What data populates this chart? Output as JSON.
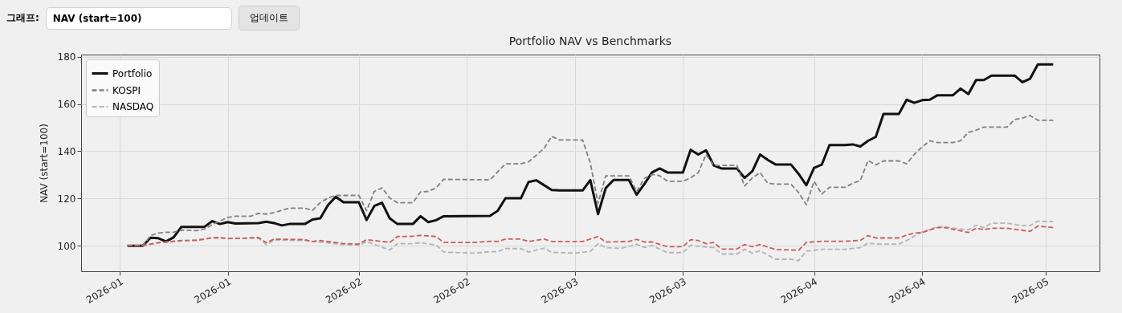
{
  "chart_data": {
    "type": "line",
    "title": "Portfolio NAV vs Benchmarks",
    "ylabel": "NAV (start=100)",
    "annotations": [
      "그래프:",
      "NAV (start=100)",
      "업데이트"
    ],
    "xlim": [
      "2025-12-27",
      "2026-05-08"
    ],
    "xticks": [
      {
        "value": "2026-01-01",
        "label": "2026-01"
      },
      {
        "value": "2026-01-15",
        "label": "2026-01"
      },
      {
        "value": "2026-02-01",
        "label": "2026-02"
      },
      {
        "value": "2026-02-15",
        "label": "2026-02"
      },
      {
        "value": "2026-03-01",
        "label": "2026-03"
      },
      {
        "value": "2026-03-15",
        "label": "2026-03"
      },
      {
        "value": "2026-04-01",
        "label": "2026-04"
      },
      {
        "value": "2026-04-15",
        "label": "2026-04"
      },
      {
        "value": "2026-05-01",
        "label": "2026-05"
      }
    ],
    "ylim": [
      89.2,
      180.9
    ],
    "yticks": [
      100,
      120,
      140,
      160,
      180
    ],
    "grid": true,
    "legend": "top left",
    "marker": "none",
    "series": [
      {
        "name": "Portfolio",
        "color": "#111111",
        "line_style": "solid",
        "x": [
          "2026-01-02",
          "2026-01-04",
          "2026-01-05",
          "2026-01-06",
          "2026-01-07",
          "2026-01-08",
          "2026-01-09",
          "2026-01-12",
          "2026-01-13",
          "2026-01-14",
          "2026-01-15",
          "2026-01-16",
          "2026-01-19",
          "2026-01-20",
          "2026-01-21",
          "2026-01-22",
          "2026-01-23",
          "2026-01-25",
          "2026-01-26",
          "2026-01-27",
          "2026-01-28",
          "2026-01-29",
          "2026-01-30",
          "2026-02-01",
          "2026-02-02",
          "2026-02-03",
          "2026-02-04",
          "2026-02-05",
          "2026-02-06",
          "2026-02-08",
          "2026-02-09",
          "2026-02-10",
          "2026-02-11",
          "2026-02-12",
          "2026-02-18",
          "2026-02-19",
          "2026-02-20",
          "2026-02-22",
          "2026-02-23",
          "2026-02-24",
          "2026-02-26",
          "2026-02-27",
          "2026-03-02",
          "2026-03-03",
          "2026-03-04",
          "2026-03-05",
          "2026-03-06",
          "2026-03-08",
          "2026-03-09",
          "2026-03-10",
          "2026-03-11",
          "2026-03-12",
          "2026-03-13",
          "2026-03-15",
          "2026-03-16",
          "2026-03-17",
          "2026-03-18",
          "2026-03-19",
          "2026-03-20",
          "2026-03-22",
          "2026-03-23",
          "2026-03-24",
          "2026-03-25",
          "2026-03-26",
          "2026-03-27",
          "2026-03-29",
          "2026-03-30",
          "2026-03-31",
          "2026-04-01",
          "2026-04-02",
          "2026-04-03",
          "2026-04-05",
          "2026-04-06",
          "2026-04-07",
          "2026-04-08",
          "2026-04-09",
          "2026-04-10",
          "2026-04-12",
          "2026-04-13",
          "2026-04-14",
          "2026-04-15",
          "2026-04-16",
          "2026-04-17",
          "2026-04-19",
          "2026-04-20",
          "2026-04-21",
          "2026-04-22",
          "2026-04-23",
          "2026-04-24",
          "2026-04-27",
          "2026-04-28",
          "2026-04-29",
          "2026-04-30",
          "2026-05-02"
        ],
        "values": [
          100,
          100,
          103.4,
          103.2,
          101.8,
          103.6,
          108,
          108,
          110.4,
          109.2,
          110,
          109.4,
          109.6,
          110.2,
          109.6,
          108.6,
          109.2,
          109.2,
          111.1,
          111.6,
          117.2,
          120.7,
          118.4,
          118.4,
          110.9,
          116.8,
          118.2,
          111.6,
          109.2,
          109.2,
          112.5,
          110,
          110.8,
          112.5,
          112.6,
          114.8,
          120.1,
          120.1,
          127,
          127.7,
          123.6,
          123.4,
          123.4,
          127.8,
          113.4,
          124.4,
          127.8,
          127.8,
          121.6,
          126.1,
          131,
          132.7,
          131,
          131,
          140.6,
          138.6,
          140.4,
          134,
          132.7,
          132.7,
          128.7,
          131.5,
          138.6,
          136.3,
          134.4,
          134.4,
          130.4,
          125.6,
          133,
          134.3,
          142.6,
          142.6,
          142.9,
          142,
          144.4,
          146.1,
          155.8,
          155.8,
          161.8,
          160.5,
          161.6,
          161.8,
          163.7,
          163.7,
          166.5,
          164.2,
          170.1,
          170.1,
          172,
          172,
          169.2,
          170.7,
          176.7,
          176.7
        ]
      },
      {
        "name": "KOSPI",
        "color": "#808080",
        "line_style": "dashed",
        "x": [
          "2026-01-02",
          "2026-01-04",
          "2026-01-05",
          "2026-01-06",
          "2026-01-07",
          "2026-01-08",
          "2026-01-09",
          "2026-01-11",
          "2026-01-12",
          "2026-01-13",
          "2026-01-15",
          "2026-01-16",
          "2026-01-18",
          "2026-01-19",
          "2026-01-20",
          "2026-01-21",
          "2026-01-22",
          "2026-01-23",
          "2026-01-25",
          "2026-01-26",
          "2026-01-27",
          "2026-01-28",
          "2026-01-29",
          "2026-02-01",
          "2026-02-02",
          "2026-02-03",
          "2026-02-04",
          "2026-02-05",
          "2026-02-06",
          "2026-02-08",
          "2026-02-09",
          "2026-02-10",
          "2026-02-11",
          "2026-02-12",
          "2026-02-18",
          "2026-02-20",
          "2026-02-22",
          "2026-02-23",
          "2026-02-25",
          "2026-02-26",
          "2026-02-27",
          "2026-03-02",
          "2026-03-03",
          "2026-03-04",
          "2026-03-05",
          "2026-03-08",
          "2026-03-09",
          "2026-03-10",
          "2026-03-11",
          "2026-03-12",
          "2026-03-13",
          "2026-03-15",
          "2026-03-16",
          "2026-03-17",
          "2026-03-18",
          "2026-03-19",
          "2026-03-22",
          "2026-03-23",
          "2026-03-24",
          "2026-03-25",
          "2026-03-26",
          "2026-03-27",
          "2026-03-29",
          "2026-03-30",
          "2026-03-31",
          "2026-04-01",
          "2026-04-02",
          "2026-04-03",
          "2026-04-05",
          "2026-04-06",
          "2026-04-07",
          "2026-04-08",
          "2026-04-09",
          "2026-04-10",
          "2026-04-12",
          "2026-04-13",
          "2026-04-14",
          "2026-04-15",
          "2026-04-16",
          "2026-04-17",
          "2026-04-19",
          "2026-04-20",
          "2026-04-21",
          "2026-04-22",
          "2026-04-23",
          "2026-04-26",
          "2026-04-27",
          "2026-04-28",
          "2026-04-29",
          "2026-04-30",
          "2026-05-02"
        ],
        "values": [
          100,
          100,
          104.3,
          105.4,
          105.7,
          105.7,
          106.6,
          106.4,
          107.1,
          108.9,
          112,
          112.5,
          112.5,
          113.7,
          113.4,
          114,
          115,
          115.9,
          115.9,
          115,
          118.3,
          120.2,
          121.3,
          121.3,
          114.8,
          123,
          124.5,
          120.2,
          118.2,
          118.2,
          122.8,
          123,
          124.5,
          128.1,
          127.9,
          134.7,
          134.7,
          135.5,
          141.2,
          146.3,
          144.8,
          144.8,
          135,
          117.9,
          129.6,
          129.6,
          123,
          128.5,
          130.2,
          129.6,
          127.3,
          127.3,
          128.7,
          131,
          138.6,
          134,
          134,
          125.3,
          128.7,
          131,
          126.4,
          126.1,
          126.1,
          122.5,
          117.4,
          127.3,
          121.9,
          124.7,
          124.7,
          126.4,
          127.6,
          136.1,
          134.2,
          135.9,
          135.9,
          134.7,
          138.7,
          141.8,
          144.4,
          143.7,
          143.7,
          144.4,
          148,
          148.9,
          150.2,
          150.2,
          153.4,
          154,
          155.1,
          153.1,
          153.1
        ]
      },
      {
        "name": "NASDAQ",
        "color": "#b4b4b4",
        "line_style": "dashed",
        "x": [
          "2026-01-02",
          "2026-01-04",
          "2026-01-06",
          "2026-01-09",
          "2026-01-13",
          "2026-01-19",
          "2026-01-20",
          "2026-01-21",
          "2026-01-25",
          "2026-01-30",
          "2026-02-01",
          "2026-02-02",
          "2026-02-05",
          "2026-02-06",
          "2026-02-08",
          "2026-02-09",
          "2026-02-11",
          "2026-02-12",
          "2026-02-16",
          "2026-02-18",
          "2026-02-19",
          "2026-02-20",
          "2026-02-22",
          "2026-02-23",
          "2026-02-25",
          "2026-02-26",
          "2026-03-01",
          "2026-03-03",
          "2026-03-04",
          "2026-03-05",
          "2026-03-07",
          "2026-03-09",
          "2026-03-10",
          "2026-03-11",
          "2026-03-13",
          "2026-03-15",
          "2026-03-16",
          "2026-03-17",
          "2026-03-19",
          "2026-03-20",
          "2026-03-22",
          "2026-03-23",
          "2026-03-24",
          "2026-03-25",
          "2026-03-27",
          "2026-03-29",
          "2026-03-30",
          "2026-03-31",
          "2026-04-02",
          "2026-04-05",
          "2026-04-07",
          "2026-04-08",
          "2026-04-09",
          "2026-04-12",
          "2026-04-13",
          "2026-04-14",
          "2026-04-15",
          "2026-04-17",
          "2026-04-18",
          "2026-04-21",
          "2026-04-22",
          "2026-04-23",
          "2026-04-24",
          "2026-04-26",
          "2026-04-28",
          "2026-04-29",
          "2026-04-30",
          "2026-05-02"
        ],
        "values": [
          100,
          100,
          101.3,
          102,
          103.2,
          103.2,
          100.5,
          102.4,
          102.2,
          100.5,
          100.3,
          101.8,
          98.2,
          100.9,
          100.9,
          101.3,
          100.3,
          97.3,
          96.9,
          97.5,
          97.5,
          98.8,
          98.8,
          97.3,
          99,
          97.2,
          96.9,
          97.6,
          100.9,
          99.2,
          98.9,
          100.6,
          99.3,
          100.1,
          97.1,
          97.1,
          100.2,
          99.8,
          99.2,
          96.5,
          96.5,
          98.5,
          96.9,
          97.9,
          94.3,
          94.3,
          93.7,
          97.7,
          98.5,
          98.5,
          99.2,
          101.1,
          100.7,
          100.7,
          102.2,
          104.1,
          105.8,
          108.1,
          107.9,
          106.7,
          108.7,
          107.7,
          109.5,
          109.6,
          108.5,
          108.5,
          110.4,
          110.2
        ]
      },
      {
        "color": "#cd5c5c",
        "line_style": "dashed",
        "x": [
          "2026-01-02",
          "2026-01-04",
          "2026-01-06",
          "2026-01-09",
          "2026-01-11",
          "2026-01-13",
          "2026-01-14",
          "2026-01-15",
          "2026-01-17",
          "2026-01-19",
          "2026-01-20",
          "2026-01-21",
          "2026-01-25",
          "2026-01-26",
          "2026-01-27",
          "2026-01-30",
          "2026-02-01",
          "2026-02-02",
          "2026-02-05",
          "2026-02-06",
          "2026-02-08",
          "2026-02-09",
          "2026-02-11",
          "2026-02-12",
          "2026-02-16",
          "2026-02-18",
          "2026-02-19",
          "2026-02-20",
          "2026-02-22",
          "2026-02-23",
          "2026-02-25",
          "2026-02-26",
          "2026-03-02",
          "2026-03-04",
          "2026-03-05",
          "2026-03-08",
          "2026-03-09",
          "2026-03-10",
          "2026-03-11",
          "2026-03-13",
          "2026-03-15",
          "2026-03-16",
          "2026-03-17",
          "2026-03-18",
          "2026-03-19",
          "2026-03-20",
          "2026-03-22",
          "2026-03-23",
          "2026-03-24",
          "2026-03-25",
          "2026-03-27",
          "2026-03-30",
          "2026-03-31",
          "2026-04-02",
          "2026-04-05",
          "2026-04-07",
          "2026-04-08",
          "2026-04-09",
          "2026-04-12",
          "2026-04-13",
          "2026-04-14",
          "2026-04-15",
          "2026-04-17",
          "2026-04-18",
          "2026-04-21",
          "2026-04-22",
          "2026-04-23",
          "2026-04-24",
          "2026-04-26",
          "2026-04-29",
          "2026-04-30",
          "2026-05-02"
        ],
        "values": [
          100,
          100,
          101.3,
          102.2,
          102.2,
          103.4,
          103.5,
          103,
          103.2,
          103.5,
          101.3,
          102.8,
          102.6,
          101.8,
          102.2,
          100.9,
          100.7,
          102.6,
          101.4,
          103.9,
          104,
          104.4,
          103.9,
          101.4,
          101.4,
          101.9,
          101.8,
          102.8,
          102.8,
          101.8,
          102.8,
          101.8,
          101.8,
          103.9,
          101.6,
          101.8,
          102.7,
          101.6,
          101.6,
          99.6,
          99.6,
          102.6,
          102.2,
          100.9,
          101.4,
          98.6,
          98.6,
          100.5,
          99.6,
          100.5,
          98.4,
          98.1,
          101.4,
          101.9,
          101.9,
          102.3,
          104.3,
          103.3,
          103.3,
          104.5,
          105.3,
          105.6,
          107.7,
          107.7,
          105.6,
          107.4,
          106.8,
          107.4,
          107.4,
          106.1,
          108.3,
          107.7
        ]
      }
    ]
  }
}
